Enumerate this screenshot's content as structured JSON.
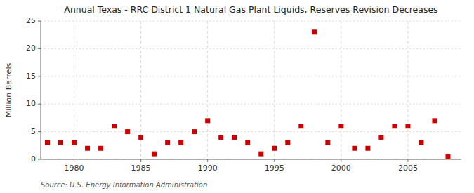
{
  "chart_data": {
    "type": "scatter",
    "title": "Annual Texas - RRC District 1 Natural Gas Plant Liquids, Reserves Revision Decreases",
    "y_label": "Million Barrels",
    "annotations": [
      "Source: U.S. Energy Information Administration"
    ],
    "x": [
      1978,
      1979,
      1980,
      1981,
      1982,
      1983,
      1984,
      1985,
      1986,
      1987,
      1988,
      1989,
      1990,
      1991,
      1992,
      1993,
      1994,
      1995,
      1996,
      1997,
      1998,
      1999,
      2000,
      2001,
      2002,
      2003,
      2004,
      2005,
      2006,
      2007,
      2008
    ],
    "values": [
      3.0,
      3.0,
      3.0,
      2.0,
      2.0,
      6.0,
      5.0,
      4.0,
      1.0,
      3.0,
      3.0,
      5.0,
      7.0,
      4.0,
      4.0,
      3.0,
      1.0,
      2.0,
      3.0,
      6.0,
      23.0,
      3.0,
      6.0,
      2.0,
      2.0,
      4.0,
      6.0,
      6.0,
      3.0,
      7.0,
      0.5
    ],
    "color": "#cc0000",
    "marker": "square",
    "xlim": [
      1977.5,
      2009
    ],
    "xticks": [
      1980,
      1985,
      1990,
      1995,
      2000,
      2005
    ],
    "ylim": [
      0,
      25
    ],
    "yticks": [
      0,
      5,
      10,
      15,
      20,
      25
    ],
    "grid": true
  }
}
